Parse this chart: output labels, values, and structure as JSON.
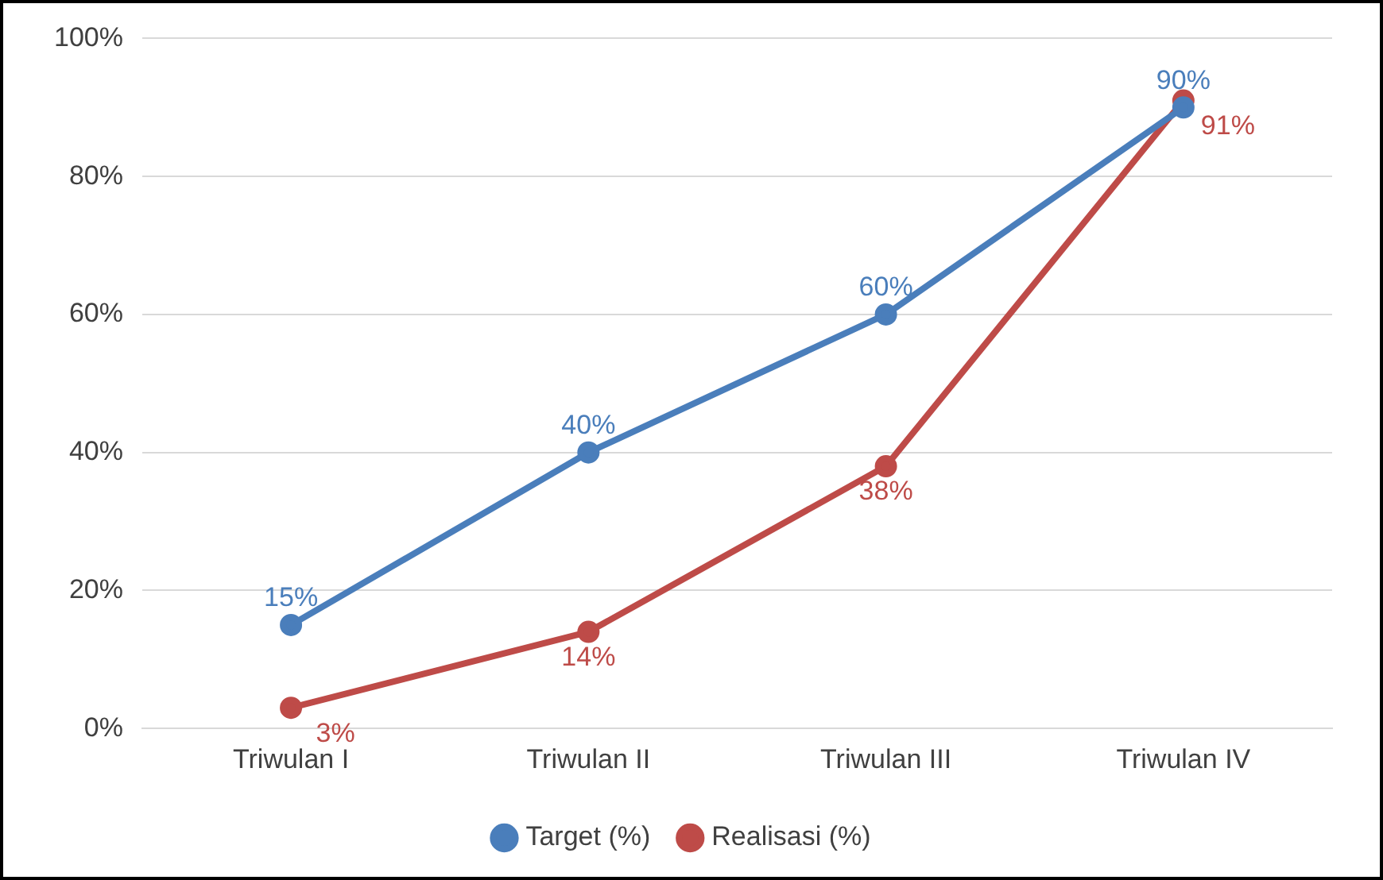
{
  "chart_data": {
    "type": "line",
    "categories": [
      "Triwulan I",
      "Triwulan II",
      "Triwulan III",
      "Triwulan IV"
    ],
    "series": [
      {
        "name": "Target (%)",
        "color": "#4a7ebb",
        "values": [
          15,
          40,
          60,
          90
        ],
        "value_labels": [
          "15%",
          "40%",
          "60%",
          "90%"
        ]
      },
      {
        "name": "Realisasi (%)",
        "color": "#be4b48",
        "values": [
          3,
          14,
          38,
          91
        ],
        "value_labels": [
          "3%",
          "14%",
          "38%",
          "91%"
        ]
      }
    ],
    "ylim": [
      0,
      100
    ],
    "yticks": [
      {
        "value": 0,
        "label": "0%"
      },
      {
        "value": 20,
        "label": "20%"
      },
      {
        "value": 40,
        "label": "40%"
      },
      {
        "value": 60,
        "label": "60%"
      },
      {
        "value": 80,
        "label": "80%"
      },
      {
        "value": 100,
        "label": "100%"
      }
    ],
    "grid": "y",
    "legend": "bottom",
    "marker": "circle",
    "line_style": "solid"
  }
}
